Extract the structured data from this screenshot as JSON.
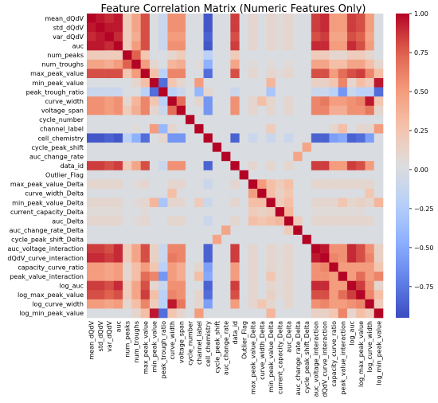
{
  "chart_data": {
    "type": "heatmap",
    "title": "Feature Correlation Matrix (Numeric Features Only)",
    "labels": [
      "mean_dQdV",
      "std_dQdV",
      "var_dQdV",
      "auc",
      "num_peaks",
      "num_troughs",
      "max_peak_value",
      "min_peak_value",
      "peak_trough_ratio",
      "curve_width",
      "voltage_span",
      "cycle_number",
      "channel_label",
      "cell_chemistry",
      "cycle_peak_shift",
      "auc_change_rate",
      "data_id",
      "Outlier_Flag",
      "max_peak_value_Delta",
      "curve_width_Delta",
      "min_peak_value_Delta",
      "current_capacity_Delta",
      "auc_Delta",
      "auc_change_rate_Delta",
      "cycle_peak_shift_Delta",
      "auc_voltage_interaction",
      "dQdV_curve_interaction",
      "capacity_curve_ratio",
      "peak_value_interaction",
      "log_auc",
      "log_max_peak_value",
      "log_curve_width",
      "log_min_peak_value"
    ],
    "colorbar_ticks": [
      "1.00",
      "0.75",
      "0.50",
      "0.25",
      "0.00",
      "−0.25",
      "−0.50",
      "−0.75"
    ],
    "colorbar_values": [
      1.0,
      0.75,
      0.5,
      0.25,
      0.0,
      -0.25,
      -0.5,
      -0.75
    ],
    "vmin": -0.95,
    "vmax": 1.0,
    "colormap": "coolwarm",
    "matrix": [
      [
        1,
        0.95,
        0.9,
        0.95,
        0.2,
        0.45,
        0.8,
        0,
        -0.1,
        0.55,
        0.55,
        0,
        0,
        -0.9,
        0,
        0,
        0.85,
        0,
        0.1,
        0,
        0.1,
        0.05,
        0.1,
        0,
        0,
        0.85,
        0.9,
        0.5,
        0.5,
        0.85,
        0.8,
        0.5,
        0
      ],
      [
        0.95,
        1,
        0.95,
        0.95,
        0.2,
        0.45,
        0.8,
        0,
        -0.1,
        0.55,
        0.55,
        0,
        0,
        -0.9,
        0,
        0,
        0.85,
        0,
        0.1,
        0,
        0.1,
        0.05,
        0.1,
        0,
        0,
        0.85,
        0.9,
        0.5,
        0.5,
        0.85,
        0.8,
        0.5,
        0
      ],
      [
        0.9,
        0.95,
        1,
        0.9,
        0.2,
        0.4,
        0.8,
        0,
        -0.1,
        0.5,
        0.5,
        0,
        0,
        -0.85,
        0,
        0,
        0.8,
        0,
        0.1,
        0,
        0.1,
        0.05,
        0.1,
        0,
        0,
        0.8,
        0.85,
        0.45,
        0.45,
        0.8,
        0.75,
        0.45,
        0
      ],
      [
        0.95,
        0.95,
        0.9,
        1,
        0.2,
        0.5,
        0.8,
        0,
        -0.1,
        0.55,
        0.55,
        0,
        0,
        -0.9,
        0,
        0,
        0.85,
        0,
        0.1,
        0,
        0.1,
        0.05,
        0.1,
        0,
        0,
        0.9,
        0.9,
        0.5,
        0.5,
        0.9,
        0.8,
        0.5,
        0
      ],
      [
        0.2,
        0.2,
        0.2,
        0.2,
        1,
        0.75,
        0.25,
        0,
        0,
        0.1,
        0.2,
        0,
        0,
        -0.2,
        0,
        0,
        0.2,
        0,
        0,
        0,
        0,
        0,
        0,
        0,
        0,
        0.2,
        0.2,
        0.1,
        0.1,
        0.2,
        0.2,
        0.1,
        0
      ],
      [
        0.45,
        0.45,
        0.4,
        0.5,
        0.75,
        1,
        0.5,
        0.1,
        0,
        0.35,
        0.4,
        0,
        0.05,
        -0.45,
        0,
        0,
        0.45,
        0,
        0.05,
        0,
        0.05,
        0,
        0.05,
        0,
        0,
        0.45,
        0.45,
        0.3,
        0.3,
        0.45,
        0.45,
        0.3,
        0.1
      ],
      [
        0.8,
        0.8,
        0.8,
        0.8,
        0.25,
        0.5,
        1,
        0.3,
        -0.2,
        0.6,
        0.6,
        0,
        0,
        -0.8,
        0,
        0,
        0.8,
        0,
        0.1,
        0,
        0.1,
        0.05,
        0.1,
        0,
        0,
        0.8,
        0.8,
        0.5,
        0.7,
        0.8,
        0.85,
        0.6,
        0.3
      ],
      [
        0,
        0,
        0,
        0,
        0,
        0.1,
        0.3,
        1,
        -0.8,
        0.25,
        0.1,
        0,
        0.5,
        0,
        0,
        0,
        0,
        0,
        0,
        0,
        0.35,
        0,
        0,
        0,
        0,
        0.15,
        0.15,
        0.25,
        0.6,
        0.1,
        0.3,
        0.2,
        0.95
      ],
      [
        -0.1,
        -0.1,
        -0.1,
        -0.1,
        0,
        0,
        -0.2,
        -0.8,
        1,
        -0.2,
        -0.1,
        0,
        -0.4,
        0.1,
        0,
        0,
        -0.1,
        0,
        0,
        0,
        -0.3,
        0,
        0,
        0,
        0,
        -0.1,
        -0.1,
        -0.2,
        -0.6,
        -0.1,
        -0.2,
        -0.2,
        -0.8
      ],
      [
        0.55,
        0.55,
        0.5,
        0.55,
        0.1,
        0.35,
        0.6,
        0.25,
        -0.2,
        1,
        0.7,
        0,
        0.1,
        -0.6,
        0,
        0,
        0.55,
        0,
        0.1,
        0.3,
        0.1,
        0,
        0.1,
        0,
        0,
        0.6,
        0.65,
        0.5,
        0.5,
        0.55,
        0.6,
        0.95,
        0.25
      ],
      [
        0.55,
        0.55,
        0.5,
        0.55,
        0.2,
        0.4,
        0.6,
        0.1,
        -0.1,
        0.7,
        1,
        0,
        0,
        -0.6,
        0,
        0,
        0.55,
        0,
        0.1,
        0,
        0.1,
        0,
        0.1,
        0,
        0,
        0.6,
        0.6,
        0.4,
        0.4,
        0.55,
        0.55,
        0.65,
        0.1
      ],
      [
        0,
        0,
        0,
        0,
        0,
        0,
        0,
        0,
        0,
        0,
        0,
        1,
        0,
        0,
        0,
        0,
        0,
        0,
        0,
        0,
        0,
        0,
        0,
        0,
        0,
        0,
        0,
        0,
        0,
        0,
        0,
        0,
        0
      ],
      [
        0,
        0,
        0,
        0,
        0,
        0.05,
        0,
        0.5,
        -0.4,
        0.1,
        0,
        0,
        1,
        0,
        0,
        0,
        0,
        0,
        0,
        0,
        0.2,
        0,
        0,
        0,
        0,
        0,
        0,
        0.1,
        0.3,
        0,
        0.1,
        0.1,
        0.5
      ],
      [
        -0.9,
        -0.9,
        -0.85,
        -0.9,
        -0.2,
        -0.45,
        -0.8,
        0,
        0.1,
        -0.6,
        -0.6,
        0,
        0,
        1,
        0,
        0,
        -0.85,
        0,
        -0.1,
        0,
        -0.1,
        0,
        -0.1,
        0,
        0,
        -0.85,
        -0.85,
        -0.55,
        -0.5,
        -0.85,
        -0.8,
        -0.55,
        0
      ],
      [
        0,
        0,
        0,
        0,
        0,
        0,
        0,
        0,
        0,
        0,
        0,
        0,
        0,
        0,
        1,
        0,
        0,
        0,
        0,
        0,
        0,
        0,
        0,
        0,
        0.45,
        0,
        0,
        0,
        0,
        0,
        0,
        0,
        0
      ],
      [
        0,
        0,
        0,
        0,
        0,
        0,
        0,
        0,
        0,
        0,
        0,
        0,
        0,
        0,
        0,
        1,
        0,
        0,
        0,
        0,
        0,
        0,
        0,
        0.45,
        0,
        0,
        0,
        0,
        0,
        0,
        0,
        0,
        0
      ],
      [
        0.85,
        0.85,
        0.8,
        0.85,
        0.2,
        0.45,
        0.8,
        0,
        -0.1,
        0.55,
        0.55,
        0,
        0,
        -0.85,
        0,
        0,
        1,
        0,
        0.1,
        0,
        0.1,
        0,
        0.1,
        0,
        0,
        0.85,
        0.85,
        0.5,
        0.5,
        0.85,
        0.8,
        0.5,
        0
      ],
      [
        0,
        0,
        0,
        0,
        0,
        0,
        0,
        0,
        0,
        0,
        0,
        0,
        0,
        0,
        0,
        0,
        0,
        1,
        0,
        0,
        0,
        0,
        0,
        0,
        0,
        0,
        0,
        0,
        0,
        0,
        0,
        0,
        0
      ],
      [
        0.1,
        0.1,
        0.1,
        0.1,
        0,
        0.05,
        0.1,
        0,
        0,
        0.1,
        0.1,
        0,
        0,
        -0.1,
        0,
        0,
        0.1,
        0,
        1,
        0.5,
        0.3,
        0.2,
        0.3,
        0,
        0,
        0.1,
        0.1,
        0.1,
        0.1,
        0.1,
        0.1,
        0.1,
        0
      ],
      [
        0,
        0,
        0,
        0,
        0,
        0,
        0,
        0,
        0,
        0.3,
        0,
        0,
        0,
        0,
        0,
        0,
        0,
        0,
        0.5,
        1,
        0.3,
        0.15,
        0.25,
        0,
        0,
        0,
        0,
        0,
        0,
        0,
        0,
        0.25,
        0
      ],
      [
        0.1,
        0.1,
        0.1,
        0.1,
        0,
        0.05,
        0.1,
        0.35,
        -0.3,
        0.1,
        0.1,
        0,
        0.2,
        -0.1,
        0,
        0,
        0.1,
        0,
        0.3,
        0.3,
        1,
        0.2,
        0.3,
        0,
        0,
        0.1,
        0.1,
        0.1,
        0.25,
        0.1,
        0.15,
        0.1,
        0.35
      ],
      [
        0.05,
        0.05,
        0.05,
        0.05,
        0,
        0,
        0.05,
        0,
        0,
        0,
        0,
        0,
        0,
        0,
        0,
        0,
        0,
        0,
        0.2,
        0.15,
        0.2,
        1,
        0.35,
        0,
        0,
        0.05,
        0.05,
        0.05,
        0.05,
        0.05,
        0.05,
        0,
        0
      ],
      [
        0.1,
        0.1,
        0.1,
        0.1,
        0,
        0.05,
        0.1,
        0,
        0,
        0.1,
        0.1,
        0,
        0,
        -0.1,
        0,
        0,
        0.1,
        0,
        0.3,
        0.25,
        0.3,
        0.35,
        1,
        0.2,
        0,
        0.1,
        0.1,
        0.1,
        0.1,
        0.1,
        0.1,
        0.1,
        0
      ],
      [
        0,
        0,
        0,
        0,
        0,
        0,
        0,
        0,
        0,
        0,
        0,
        0,
        0,
        0,
        0,
        0.45,
        0,
        0,
        0,
        0,
        0,
        0,
        0.2,
        1,
        0,
        0,
        0,
        0,
        0,
        0,
        0,
        0,
        0
      ],
      [
        0,
        0,
        0,
        0,
        0,
        0,
        0,
        0,
        0,
        0,
        0,
        0,
        0,
        0,
        0.45,
        0,
        0,
        0,
        0,
        0,
        0,
        0,
        0,
        0,
        1,
        0,
        0,
        0,
        0,
        0,
        0,
        0,
        0
      ],
      [
        0.85,
        0.85,
        0.8,
        0.9,
        0.2,
        0.45,
        0.8,
        0.15,
        -0.1,
        0.6,
        0.6,
        0,
        0,
        -0.85,
        0,
        0,
        0.85,
        0,
        0.1,
        0,
        0.1,
        0.05,
        0.1,
        0,
        0,
        1,
        0.95,
        0.55,
        0.55,
        0.9,
        0.8,
        0.55,
        0.15
      ],
      [
        0.9,
        0.9,
        0.85,
        0.9,
        0.2,
        0.45,
        0.8,
        0.15,
        -0.1,
        0.65,
        0.6,
        0,
        0,
        -0.85,
        0,
        0,
        0.85,
        0,
        0.1,
        0,
        0.1,
        0.05,
        0.1,
        0,
        0,
        0.95,
        1,
        0.6,
        0.55,
        0.9,
        0.8,
        0.6,
        0.15
      ],
      [
        0.5,
        0.5,
        0.45,
        0.5,
        0.1,
        0.3,
        0.5,
        0.25,
        -0.2,
        0.5,
        0.4,
        0,
        0.1,
        -0.55,
        0,
        0,
        0.5,
        0,
        0.1,
        0,
        0.1,
        0.05,
        0.1,
        0,
        0,
        0.55,
        0.6,
        1,
        0.5,
        0.5,
        0.5,
        0.5,
        0.25
      ],
      [
        0.5,
        0.5,
        0.45,
        0.5,
        0.1,
        0.3,
        0.7,
        0.6,
        -0.6,
        0.5,
        0.4,
        0,
        0.3,
        -0.5,
        0,
        0,
        0.5,
        0,
        0.1,
        0,
        0.25,
        0.05,
        0.1,
        0,
        0,
        0.55,
        0.55,
        0.5,
        1,
        0.5,
        0.7,
        0.5,
        0.6
      ],
      [
        0.85,
        0.85,
        0.8,
        0.9,
        0.2,
        0.45,
        0.8,
        0.1,
        -0.1,
        0.55,
        0.55,
        0,
        0,
        -0.85,
        0,
        0,
        0.85,
        0,
        0.1,
        0,
        0.1,
        0.05,
        0.1,
        0,
        0,
        0.9,
        0.9,
        0.5,
        0.5,
        1,
        0.85,
        0.55,
        0.1
      ],
      [
        0.8,
        0.8,
        0.75,
        0.8,
        0.2,
        0.45,
        0.85,
        0.3,
        -0.2,
        0.6,
        0.55,
        0,
        0.1,
        -0.8,
        0,
        0,
        0.8,
        0,
        0.1,
        0,
        0.15,
        0.05,
        0.1,
        0,
        0,
        0.8,
        0.8,
        0.5,
        0.7,
        0.85,
        1,
        0.6,
        0.3
      ],
      [
        0.5,
        0.5,
        0.45,
        0.5,
        0.1,
        0.3,
        0.6,
        0.2,
        -0.2,
        0.95,
        0.65,
        0,
        0.1,
        -0.55,
        0,
        0,
        0.5,
        0,
        0.1,
        0.25,
        0.1,
        0,
        0.1,
        0,
        0,
        0.55,
        0.6,
        0.5,
        0.5,
        0.55,
        0.6,
        1,
        0.2
      ],
      [
        0,
        0,
        0,
        0,
        0,
        0.1,
        0.3,
        0.95,
        -0.8,
        0.25,
        0.1,
        0,
        0.5,
        0,
        0,
        0,
        0,
        0,
        0,
        0,
        0.35,
        0,
        0,
        0,
        0,
        0.15,
        0.15,
        0.25,
        0.6,
        0.1,
        0.3,
        0.2,
        1
      ]
    ]
  }
}
